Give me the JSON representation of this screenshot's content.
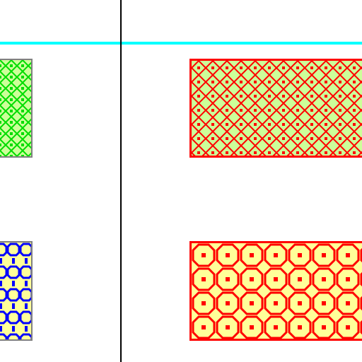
{
  "canvas": {
    "background": "#ffffff"
  },
  "rules": {
    "horizontal_color": "#00ffff",
    "vertical_color": "#000000"
  },
  "tiles": [
    {
      "id": "tile-a",
      "pattern": "diamond-lattice",
      "fill_color": "#ccff99",
      "line_color": "#00dd00",
      "border_color": "#808080"
    },
    {
      "id": "tile-b",
      "pattern": "diamond-lattice",
      "fill_color": "#ccff99",
      "line_color": "#ff0000",
      "border_color": "#ff0000"
    },
    {
      "id": "tile-c",
      "pattern": "octagon-ring",
      "fill_color": "#ffff99",
      "line_color": "#0000ff",
      "border_color": "#808080"
    },
    {
      "id": "tile-d",
      "pattern": "octagon-ring",
      "fill_color": "#ffff99",
      "line_color": "#ff0000",
      "border_color": "#ff0000"
    }
  ]
}
